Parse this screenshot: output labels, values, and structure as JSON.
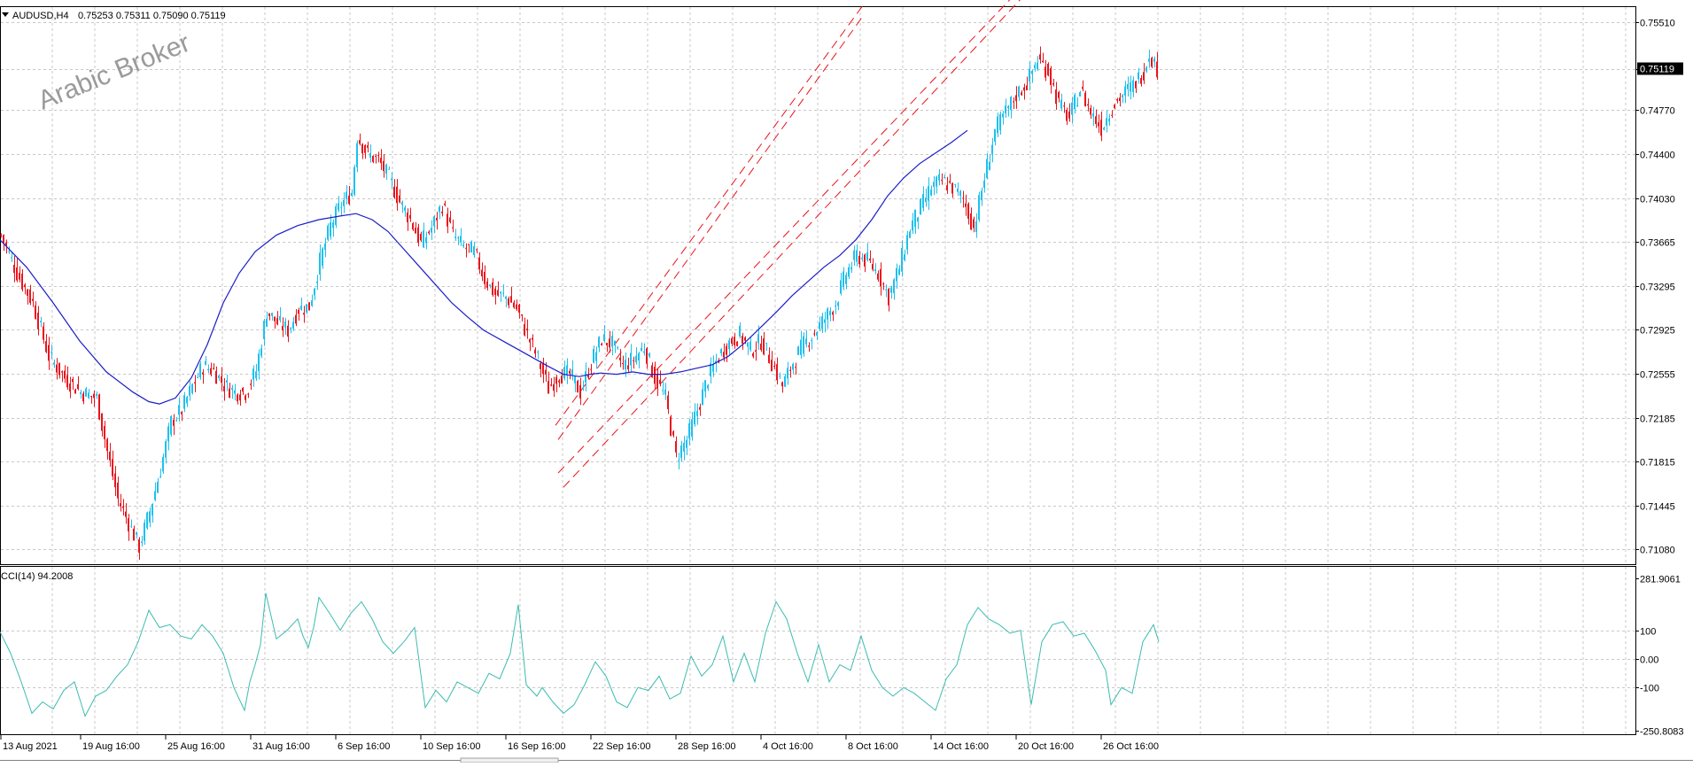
{
  "header": {
    "symbol_label": "AUDUSD,H4",
    "ohlc": "0.75253 0.75311 0.75090 0.75119",
    "collapse_icon": "triangle-down-icon"
  },
  "watermark": "Arabic Broker",
  "cci_header": "CCI(14) 94.2008",
  "current_price_label": "0.75119",
  "colors": {
    "bull": "#1ec0ee",
    "bear": "#e8141c",
    "ma": "#1c1cc8",
    "cci": "#3cbcb0",
    "channel": "#e8141c",
    "grid": "#c8c8c8",
    "price_tag_bg": "#000000"
  },
  "chart_data": [
    {
      "type": "candlestick",
      "title": "AUDUSD,H4",
      "xlabel": "",
      "ylabel": "",
      "ylim": [
        0.7098,
        0.756
      ],
      "price_ticks": [
        "0.75510",
        "0.75119",
        "0.74770",
        "0.74400",
        "0.74030",
        "0.73665",
        "0.73295",
        "0.72925",
        "0.72555",
        "0.72185",
        "0.71815",
        "0.71445",
        "0.71080"
      ],
      "x_tick_labels": [
        "13 Aug 2021",
        "19 Aug 16:00",
        "25 Aug 16:00",
        "31 Aug 16:00",
        "6 Sep 16:00",
        "10 Sep 16:00",
        "16 Sep 16:00",
        "22 Sep 16:00",
        "28 Sep 16:00",
        "4 Oct 16:00",
        "8 Oct 16:00",
        "14 Oct 16:00",
        "20 Oct 16:00",
        "26 Oct 16:00"
      ],
      "price_path": [
        [
          0,
          0.7372
        ],
        [
          6,
          0.734
        ],
        [
          12,
          0.7315
        ],
        [
          18,
          0.727
        ],
        [
          24,
          0.7252
        ],
        [
          30,
          0.724
        ],
        [
          36,
          0.7235
        ],
        [
          40,
          0.719
        ],
        [
          44,
          0.715
        ],
        [
          48,
          0.713
        ],
        [
          52,
          0.711
        ],
        [
          56,
          0.714
        ],
        [
          60,
          0.7175
        ],
        [
          64,
          0.7215
        ],
        [
          68,
          0.7225
        ],
        [
          72,
          0.7245
        ],
        [
          76,
          0.7262
        ],
        [
          80,
          0.7258
        ],
        [
          84,
          0.7246
        ],
        [
          88,
          0.724
        ],
        [
          92,
          0.724
        ],
        [
          96,
          0.7258
        ],
        [
          100,
          0.7308
        ],
        [
          104,
          0.7298
        ],
        [
          108,
          0.7292
        ],
        [
          112,
          0.731
        ],
        [
          116,
          0.7312
        ],
        [
          120,
          0.735
        ],
        [
          124,
          0.738
        ],
        [
          128,
          0.7398
        ],
        [
          132,
          0.7408
        ],
        [
          134,
          0.7455
        ],
        [
          138,
          0.744
        ],
        [
          142,
          0.7435
        ],
        [
          146,
          0.742
        ],
        [
          150,
          0.74
        ],
        [
          154,
          0.7385
        ],
        [
          158,
          0.7365
        ],
        [
          162,
          0.7378
        ],
        [
          166,
          0.7398
        ],
        [
          170,
          0.7372
        ],
        [
          174,
          0.7362
        ],
        [
          178,
          0.7358
        ],
        [
          182,
          0.7335
        ],
        [
          186,
          0.7322
        ],
        [
          190,
          0.732
        ],
        [
          194,
          0.731
        ],
        [
          198,
          0.7288
        ],
        [
          202,
          0.7268
        ],
        [
          206,
          0.7243
        ],
        [
          210,
          0.7255
        ],
        [
          214,
          0.7255
        ],
        [
          218,
          0.724
        ],
        [
          222,
          0.7265
        ],
        [
          226,
          0.7285
        ],
        [
          230,
          0.728
        ],
        [
          234,
          0.7262
        ],
        [
          238,
          0.7268
        ],
        [
          242,
          0.7278
        ],
        [
          246,
          0.7252
        ],
        [
          250,
          0.7235
        ],
        [
          254,
          0.7185
        ],
        [
          258,
          0.72
        ],
        [
          262,
          0.7225
        ],
        [
          266,
          0.7252
        ],
        [
          270,
          0.727
        ],
        [
          274,
          0.7282
        ],
        [
          278,
          0.7288
        ],
        [
          282,
          0.7275
        ],
        [
          286,
          0.7283
        ],
        [
          290,
          0.7265
        ],
        [
          294,
          0.7245
        ],
        [
          298,
          0.7265
        ],
        [
          302,
          0.728
        ],
        [
          306,
          0.729
        ],
        [
          310,
          0.7302
        ],
        [
          314,
          0.7315
        ],
        [
          318,
          0.734
        ],
        [
          322,
          0.7355
        ],
        [
          326,
          0.735
        ],
        [
          330,
          0.734
        ],
        [
          334,
          0.732
        ],
        [
          338,
          0.7345
        ],
        [
          342,
          0.7378
        ],
        [
          346,
          0.7395
        ],
        [
          350,
          0.7412
        ],
        [
          354,
          0.7418
        ],
        [
          358,
          0.7412
        ],
        [
          362,
          0.7402
        ],
        [
          366,
          0.7378
        ],
        [
          370,
          0.742
        ],
        [
          374,
          0.746
        ],
        [
          378,
          0.7475
        ],
        [
          382,
          0.749
        ],
        [
          386,
          0.75
        ],
        [
          390,
          0.752
        ],
        [
          394,
          0.751
        ],
        [
          398,
          0.7482
        ],
        [
          402,
          0.747
        ],
        [
          406,
          0.7495
        ],
        [
          410,
          0.7475
        ],
        [
          414,
          0.7462
        ],
        [
          418,
          0.748
        ],
        [
          422,
          0.749
        ],
        [
          426,
          0.7498
        ],
        [
          430,
          0.751
        ],
        [
          432,
          0.7525
        ],
        [
          435,
          0.7512
        ]
      ],
      "series": [
        {
          "name": "",
          "type": "line",
          "points": [
            [
              0,
              0.7368
            ],
            [
              10,
              0.7345
            ],
            [
              20,
              0.7315
            ],
            [
              30,
              0.7283
            ],
            [
              40,
              0.7257
            ],
            [
              50,
              0.724
            ],
            [
              56,
              0.7232
            ],
            [
              60,
              0.723
            ],
            [
              66,
              0.7235
            ],
            [
              72,
              0.7252
            ],
            [
              78,
              0.728
            ],
            [
              84,
              0.7315
            ],
            [
              90,
              0.734
            ],
            [
              96,
              0.7358
            ],
            [
              104,
              0.7372
            ],
            [
              112,
              0.738
            ],
            [
              120,
              0.7385
            ],
            [
              128,
              0.7388
            ],
            [
              134,
              0.739
            ],
            [
              140,
              0.7385
            ],
            [
              146,
              0.7375
            ],
            [
              152,
              0.736
            ],
            [
              158,
              0.7345
            ],
            [
              164,
              0.733
            ],
            [
              170,
              0.7315
            ],
            [
              176,
              0.7303
            ],
            [
              182,
              0.7292
            ],
            [
              190,
              0.7282
            ],
            [
              198,
              0.7272
            ],
            [
              206,
              0.7262
            ],
            [
              212,
              0.7255
            ],
            [
              218,
              0.7253
            ],
            [
              222,
              0.7255
            ],
            [
              226,
              0.7256
            ],
            [
              232,
              0.7255
            ],
            [
              238,
              0.7257
            ],
            [
              244,
              0.7255
            ],
            [
              250,
              0.7255
            ],
            [
              256,
              0.7257
            ],
            [
              262,
              0.726
            ],
            [
              268,
              0.7263
            ],
            [
              274,
              0.727
            ],
            [
              280,
              0.7281
            ],
            [
              286,
              0.7294
            ],
            [
              292,
              0.7307
            ],
            [
              298,
              0.7321
            ],
            [
              304,
              0.7333
            ],
            [
              310,
              0.7345
            ],
            [
              316,
              0.7355
            ],
            [
              322,
              0.7368
            ],
            [
              328,
              0.7385
            ],
            [
              334,
              0.7405
            ],
            [
              340,
              0.742
            ],
            [
              346,
              0.7432
            ],
            [
              352,
              0.7441
            ],
            [
              358,
              0.745
            ],
            [
              364,
              0.746
            ]
          ]
        }
      ],
      "channel_lines": [
        [
          [
            209,
            0.7212
          ],
          [
            325,
            0.7566
          ]
        ],
        [
          [
            210,
            0.72
          ],
          [
            325,
            0.7557
          ]
        ],
        [
          [
            210,
            0.7172
          ],
          [
            380,
            0.757
          ]
        ],
        [
          [
            212,
            0.716
          ],
          [
            386,
            0.7575
          ]
        ]
      ],
      "annotations": [
        "Arabic Broker"
      ]
    },
    {
      "type": "line",
      "title": "CCI(14) 94.2008",
      "xlabel": "",
      "ylabel": "",
      "ylim": [
        -250.8083,
        281.9061
      ],
      "y_tick_labels": [
        "281.9061",
        "100",
        "0.00",
        "-100",
        "-250.8083"
      ],
      "points": [
        [
          0,
          95
        ],
        [
          4,
          20
        ],
        [
          8,
          -80
        ],
        [
          12,
          -190
        ],
        [
          16,
          -150
        ],
        [
          20,
          -175
        ],
        [
          24,
          -110
        ],
        [
          28,
          -80
        ],
        [
          32,
          -200
        ],
        [
          36,
          -130
        ],
        [
          40,
          -110
        ],
        [
          44,
          -60
        ],
        [
          48,
          -20
        ],
        [
          52,
          60
        ],
        [
          56,
          170
        ],
        [
          60,
          110
        ],
        [
          64,
          120
        ],
        [
          68,
          80
        ],
        [
          72,
          70
        ],
        [
          76,
          120
        ],
        [
          80,
          80
        ],
        [
          84,
          20
        ],
        [
          88,
          -100
        ],
        [
          92,
          -180
        ],
        [
          94,
          -80
        ],
        [
          96,
          -20
        ],
        [
          98,
          50
        ],
        [
          100,
          230
        ],
        [
          104,
          70
        ],
        [
          108,
          100
        ],
        [
          112,
          140
        ],
        [
          114,
          80
        ],
        [
          116,
          40
        ],
        [
          118,
          110
        ],
        [
          120,
          215
        ],
        [
          124,
          160
        ],
        [
          128,
          100
        ],
        [
          132,
          160
        ],
        [
          136,
          200
        ],
        [
          140,
          140
        ],
        [
          144,
          60
        ],
        [
          148,
          20
        ],
        [
          152,
          60
        ],
        [
          156,
          110
        ],
        [
          160,
          -170
        ],
        [
          164,
          -110
        ],
        [
          168,
          -150
        ],
        [
          172,
          -80
        ],
        [
          176,
          -100
        ],
        [
          180,
          -120
        ],
        [
          184,
          -50
        ],
        [
          188,
          -70
        ],
        [
          192,
          20
        ],
        [
          195,
          190
        ],
        [
          198,
          -90
        ],
        [
          202,
          -130
        ],
        [
          204,
          -100
        ],
        [
          208,
          -150
        ],
        [
          212,
          -190
        ],
        [
          216,
          -160
        ],
        [
          220,
          -90
        ],
        [
          224,
          -10
        ],
        [
          228,
          -60
        ],
        [
          232,
          -150
        ],
        [
          236,
          -170
        ],
        [
          240,
          -100
        ],
        [
          244,
          -110
        ],
        [
          248,
          -60
        ],
        [
          252,
          -140
        ],
        [
          256,
          -120
        ],
        [
          260,
          10
        ],
        [
          264,
          -60
        ],
        [
          268,
          -20
        ],
        [
          272,
          80
        ],
        [
          276,
          -80
        ],
        [
          280,
          20
        ],
        [
          284,
          -80
        ],
        [
          288,
          90
        ],
        [
          292,
          200
        ],
        [
          296,
          140
        ],
        [
          300,
          20
        ],
        [
          304,
          -80
        ],
        [
          308,
          50
        ],
        [
          312,
          -80
        ],
        [
          316,
          -20
        ],
        [
          320,
          -40
        ],
        [
          324,
          80
        ],
        [
          328,
          -40
        ],
        [
          332,
          -100
        ],
        [
          336,
          -130
        ],
        [
          340,
          -100
        ],
        [
          344,
          -120
        ],
        [
          348,
          -150
        ],
        [
          352,
          -180
        ],
        [
          356,
          -70
        ],
        [
          360,
          -20
        ],
        [
          364,
          120
        ],
        [
          368,
          180
        ],
        [
          372,
          140
        ],
        [
          376,
          120
        ],
        [
          380,
          90
        ],
        [
          384,
          100
        ],
        [
          388,
          -160
        ],
        [
          392,
          60
        ],
        [
          396,
          120
        ],
        [
          400,
          130
        ],
        [
          404,
          80
        ],
        [
          408,
          90
        ],
        [
          412,
          30
        ],
        [
          416,
          -40
        ],
        [
          418,
          -160
        ],
        [
          422,
          -100
        ],
        [
          426,
          -120
        ],
        [
          430,
          60
        ],
        [
          434,
          120
        ],
        [
          436,
          60
        ]
      ],
      "color": "#3cbcb0"
    }
  ]
}
